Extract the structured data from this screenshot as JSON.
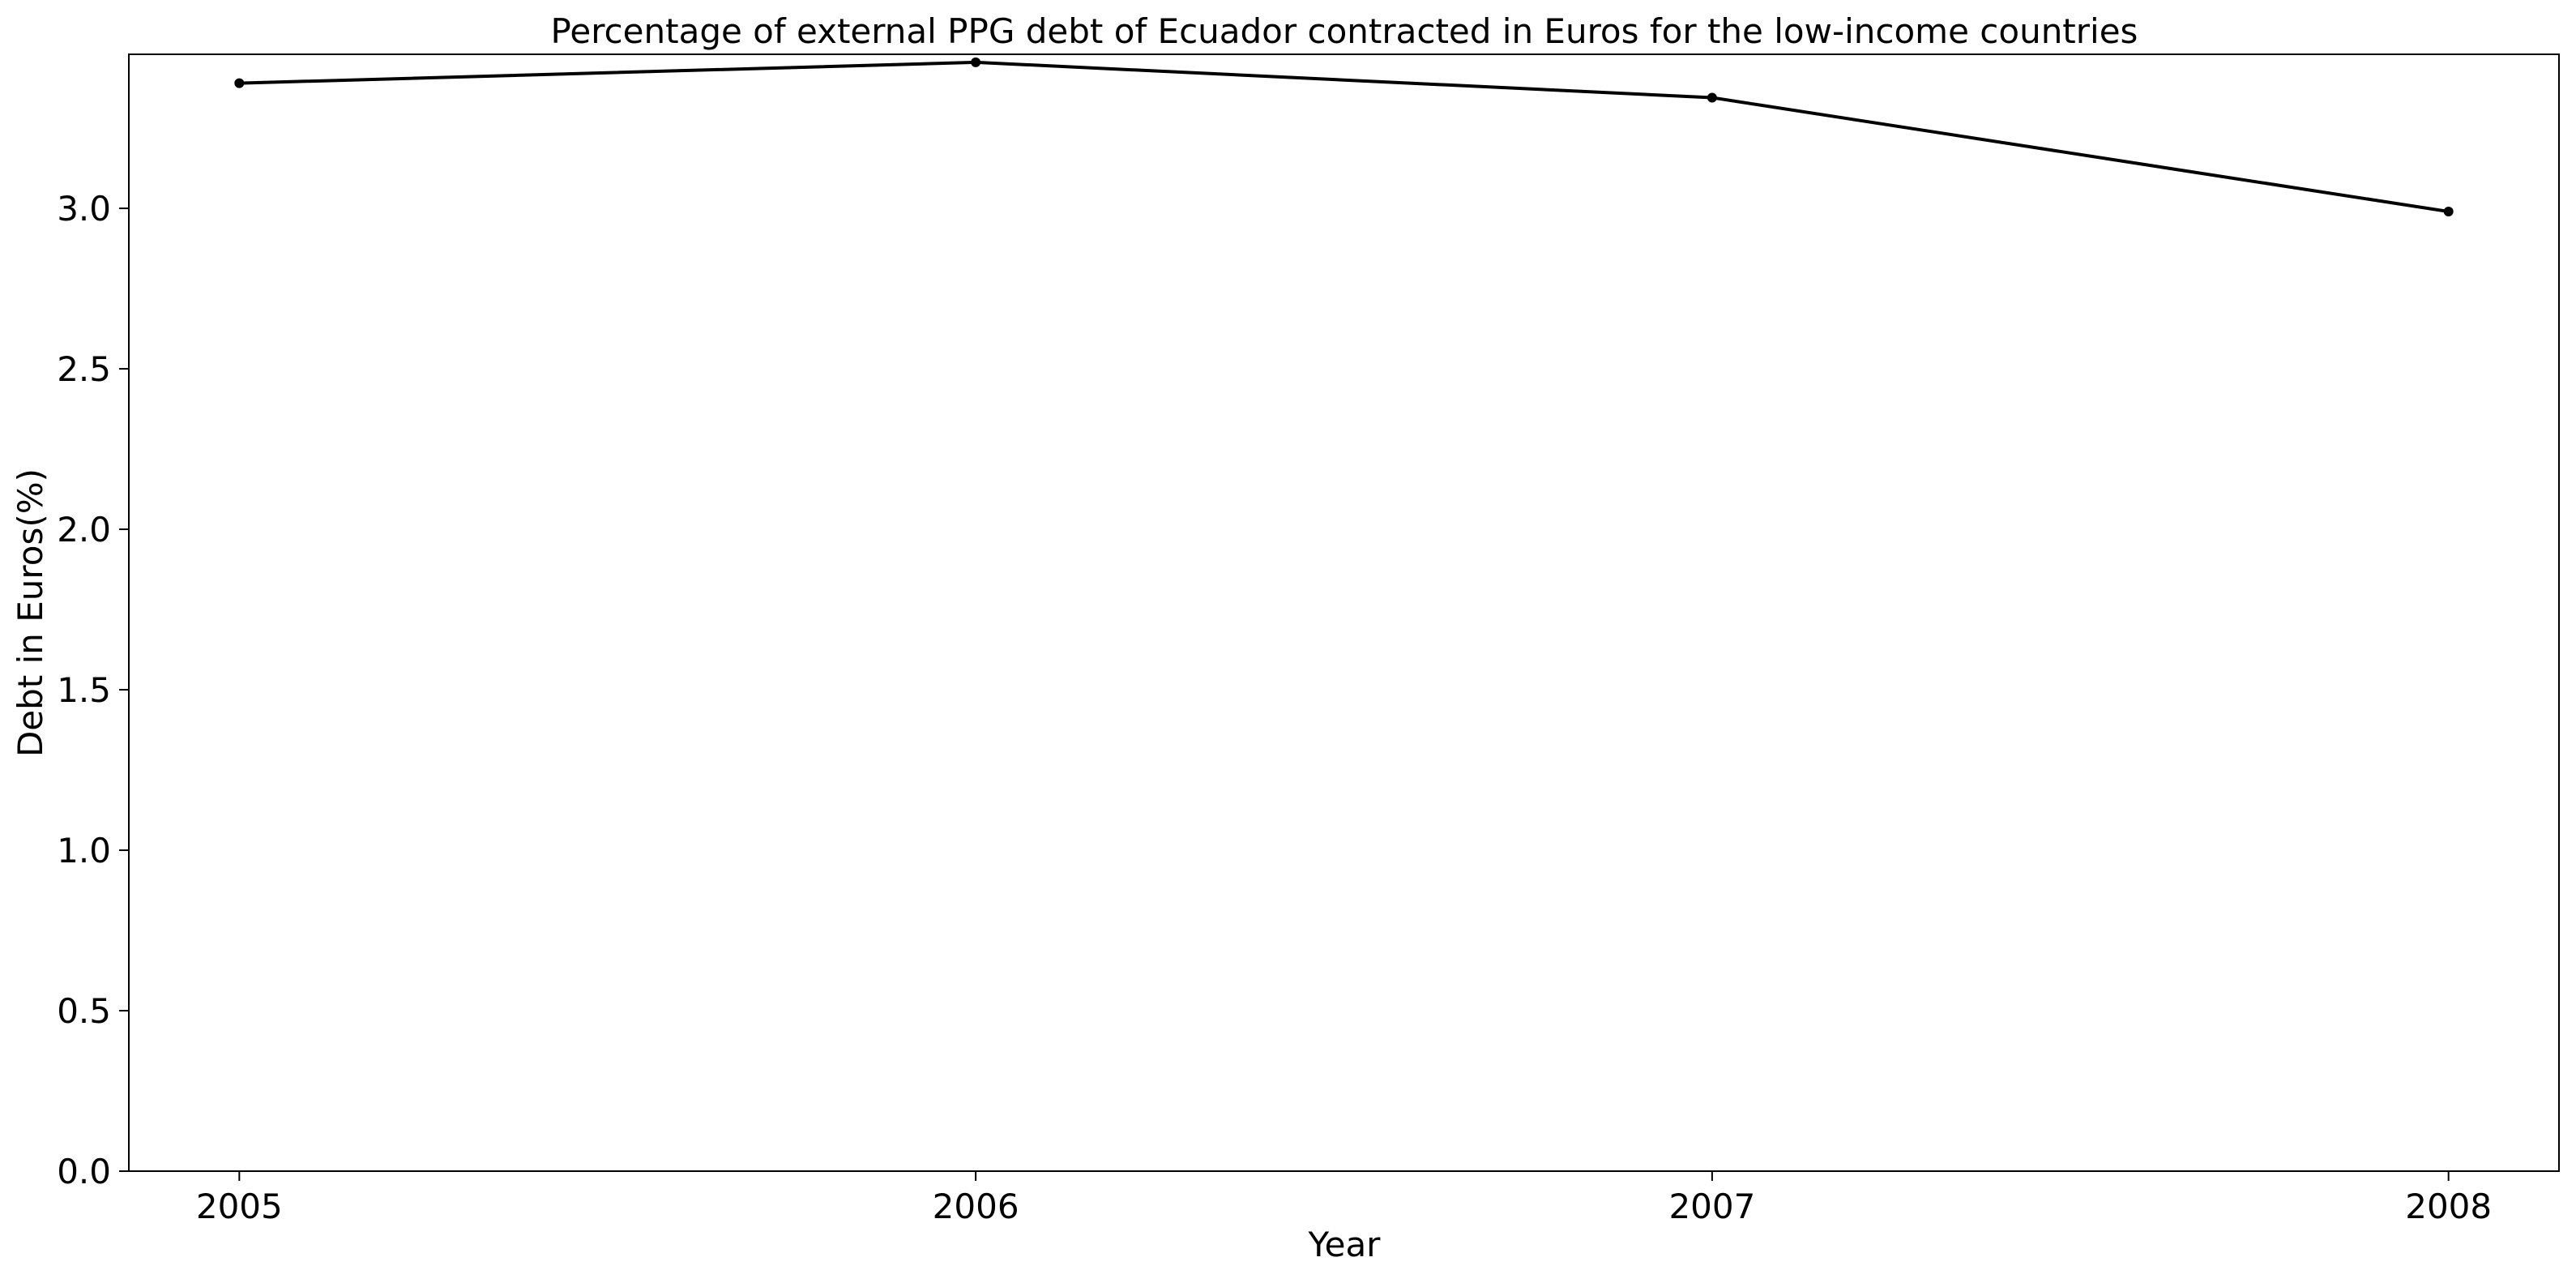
{
  "chart_data": {
    "type": "line",
    "title": "Percentage of external PPG debt of Ecuador contracted in Euros for the low-income countries",
    "xlabel": "Year",
    "ylabel": "Debt in Euros(%)",
    "x": [
      2005,
      2006,
      2007,
      2008
    ],
    "series": [
      {
        "values": [
          3.39,
          3.455,
          3.345,
          2.99
        ]
      }
    ],
    "xticks": [
      "2005",
      "2006",
      "2007",
      "2008"
    ],
    "yticks": [
      "0.0",
      "0.5",
      "1.0",
      "1.5",
      "2.0",
      "2.5",
      "3.0"
    ],
    "xlim": [
      2004.85,
      2008.15
    ],
    "ylim": [
      0,
      3.48
    ],
    "grid": false,
    "legend": "none",
    "colors": {
      "line": "#000000",
      "marker": "#000000",
      "axes": "#000000",
      "background": "#ffffff"
    }
  }
}
